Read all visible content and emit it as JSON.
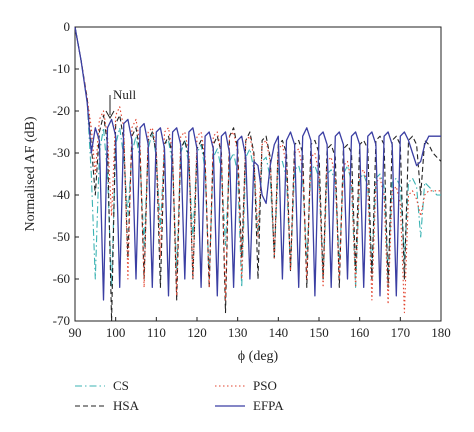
{
  "chart_data": {
    "type": "line",
    "xlabel": "ϕ (deg)",
    "ylabel": "Normalised AF (dB)",
    "xlim": [
      90,
      180
    ],
    "ylim": [
      -70,
      0
    ],
    "xticks": [
      90,
      100,
      110,
      120,
      130,
      140,
      150,
      160,
      170,
      180
    ],
    "yticks": [
      0,
      -10,
      -20,
      -30,
      -40,
      -50,
      -60,
      -70
    ],
    "grid": false,
    "legend_position": "bottom",
    "annotations": [
      {
        "text": "Null",
        "x": 99,
        "y": -24,
        "arrow": "down"
      }
    ],
    "series": [
      {
        "name": "CS",
        "color": "#3bb3b3",
        "style": "dash-dot",
        "x": [
          90,
          91.5,
          93,
          94,
          95,
          96,
          97,
          98,
          99,
          100,
          101,
          102,
          103,
          104,
          105,
          106,
          107,
          108,
          109,
          110,
          111,
          112,
          113,
          114,
          115,
          116,
          117,
          118,
          119,
          120,
          121,
          122,
          123,
          124,
          125,
          126,
          127,
          128,
          129,
          130,
          131,
          132,
          133,
          134,
          135,
          136,
          137,
          138,
          139,
          140,
          141,
          142,
          143,
          144,
          145,
          146,
          147,
          148,
          149,
          150,
          151,
          152,
          153,
          154,
          155,
          156,
          157,
          158,
          159,
          160,
          161,
          162,
          163,
          164,
          165,
          166,
          167,
          168,
          169,
          170,
          171,
          172,
          173,
          174,
          175,
          176,
          177,
          178,
          179,
          180
        ],
        "values": [
          0,
          -8,
          -18,
          -35,
          -60,
          -30,
          -24,
          -35,
          -62,
          -28,
          -24,
          -31,
          -45,
          -30,
          -26,
          -32,
          -52,
          -29,
          -25,
          -31,
          -48,
          -28,
          -27,
          -33,
          -58,
          -30,
          -27,
          -33,
          -50,
          -30,
          -28,
          -34,
          -60,
          -31,
          -29,
          -34,
          -52,
          -32,
          -30,
          -35,
          -62,
          -31,
          -29,
          -34,
          -50,
          -32,
          -31,
          -36,
          -55,
          -33,
          -32,
          -36,
          -58,
          -34,
          -33,
          -37,
          -55,
          -34,
          -33,
          -36,
          -60,
          -35,
          -34,
          -37,
          -56,
          -35,
          -33,
          -37,
          -62,
          -36,
          -35,
          -38,
          -58,
          -36,
          -35,
          -38,
          -60,
          -37,
          -36,
          -38,
          -55,
          -37,
          -36,
          -38,
          -50,
          -37,
          -38,
          -39,
          -40,
          -40
        ]
      },
      {
        "name": "HSA",
        "color": "#222222",
        "style": "dash",
        "x": [
          90,
          91.5,
          93,
          94,
          95,
          96,
          97,
          98,
          99,
          100,
          101,
          102,
          103,
          104,
          105,
          106,
          107,
          108,
          109,
          110,
          111,
          112,
          113,
          114,
          115,
          116,
          117,
          118,
          119,
          120,
          121,
          122,
          123,
          124,
          125,
          126,
          127,
          128,
          129,
          130,
          131,
          132,
          133,
          134,
          135,
          136,
          137,
          138,
          139,
          140,
          141,
          142,
          143,
          144,
          145,
          146,
          147,
          148,
          149,
          150,
          151,
          152,
          153,
          154,
          155,
          156,
          157,
          158,
          159,
          160,
          161,
          162,
          163,
          164,
          165,
          166,
          167,
          168,
          169,
          170,
          171,
          172,
          173,
          174,
          175,
          176,
          177,
          178,
          179,
          180
        ],
        "values": [
          0,
          -8,
          -17,
          -28,
          -40,
          -25,
          -21,
          -28,
          -70,
          -23,
          -21,
          -27,
          -55,
          -26,
          -24,
          -30,
          -60,
          -27,
          -25,
          -30,
          -62,
          -28,
          -26,
          -31,
          -65,
          -29,
          -27,
          -31,
          -60,
          -29,
          -27,
          -32,
          -62,
          -28,
          -26,
          -30,
          -68,
          -26,
          -24,
          -29,
          -55,
          -27,
          -25,
          -30,
          -60,
          -27,
          -26,
          -31,
          -55,
          -28,
          -27,
          -30,
          -58,
          -28,
          -27,
          -30,
          -62,
          -28,
          -27,
          -30,
          -60,
          -29,
          -28,
          -31,
          -62,
          -29,
          -28,
          -30,
          -58,
          -28,
          -27,
          -29,
          -60,
          -27,
          -26,
          -28,
          -62,
          -27,
          -26,
          -28,
          -60,
          -27,
          -26,
          -28,
          -40,
          -27,
          -28,
          -30,
          -31,
          -32
        ]
      },
      {
        "name": "PSO",
        "color": "#e2442f",
        "style": "dot",
        "x": [
          90,
          91.5,
          93,
          94,
          95,
          96,
          97,
          98,
          99,
          100,
          101,
          102,
          103,
          104,
          105,
          106,
          107,
          108,
          109,
          110,
          111,
          112,
          113,
          114,
          115,
          116,
          117,
          118,
          119,
          120,
          121,
          122,
          123,
          124,
          125,
          126,
          127,
          128,
          129,
          130,
          131,
          132,
          133,
          134,
          135,
          136,
          137,
          138,
          139,
          140,
          141,
          142,
          143,
          144,
          145,
          146,
          147,
          148,
          149,
          150,
          151,
          152,
          153,
          154,
          155,
          156,
          157,
          158,
          159,
          160,
          161,
          162,
          163,
          164,
          165,
          166,
          167,
          168,
          169,
          170,
          171,
          172,
          173,
          174,
          175,
          176,
          177,
          178,
          179,
          180
        ],
        "values": [
          0,
          -8,
          -17,
          -24,
          -35,
          -22,
          -20,
          -26,
          -45,
          -21,
          -19,
          -24,
          -60,
          -24,
          -22,
          -28,
          -62,
          -25,
          -24,
          -29,
          -55,
          -25,
          -24,
          -30,
          -64,
          -26,
          -25,
          -30,
          -60,
          -26,
          -25,
          -31,
          -62,
          -26,
          -25,
          -30,
          -65,
          -26,
          -25,
          -30,
          -60,
          -27,
          -26,
          -31,
          -50,
          -28,
          -27,
          -32,
          -55,
          -29,
          -28,
          -33,
          -58,
          -30,
          -29,
          -34,
          -60,
          -31,
          -30,
          -35,
          -62,
          -32,
          -31,
          -36,
          -60,
          -33,
          -32,
          -37,
          -62,
          -35,
          -34,
          -38,
          -65,
          -37,
          -36,
          -40,
          -66,
          -39,
          -38,
          -42,
          -68,
          -40,
          -39,
          -41,
          -45,
          -40,
          -39,
          -39,
          -39,
          -39
        ]
      },
      {
        "name": "EFPA",
        "color": "#3b3fa3",
        "style": "solid",
        "x": [
          90,
          91.5,
          93,
          94,
          95,
          96,
          97,
          98,
          99,
          100,
          101,
          102,
          103,
          104,
          105,
          106,
          107,
          108,
          109,
          110,
          111,
          112,
          113,
          114,
          115,
          116,
          117,
          118,
          119,
          120,
          121,
          122,
          123,
          124,
          125,
          126,
          127,
          128,
          129,
          130,
          131,
          132,
          133,
          134,
          135,
          136,
          137,
          138,
          139,
          140,
          141,
          142,
          143,
          144,
          145,
          146,
          147,
          148,
          149,
          150,
          151,
          152,
          153,
          154,
          155,
          156,
          157,
          158,
          159,
          160,
          161,
          162,
          163,
          164,
          165,
          166,
          167,
          168,
          169,
          170,
          171,
          172,
          173,
          174,
          175,
          176,
          177,
          178,
          179,
          180
        ],
        "values": [
          0,
          -8,
          -18,
          -30,
          -24,
          -27,
          -65,
          -24,
          -22,
          -26,
          -62,
          -23,
          -22,
          -27,
          -60,
          -24,
          -23,
          -28,
          -62,
          -25,
          -24,
          -29,
          -64,
          -25,
          -24,
          -28,
          -60,
          -25,
          -24,
          -29,
          -62,
          -26,
          -25,
          -29,
          -64,
          -26,
          -25,
          -30,
          -62,
          -27,
          -26,
          -31,
          -60,
          -32,
          -33,
          -40,
          -42,
          -33,
          -28,
          -26,
          -60,
          -27,
          -25,
          -28,
          -62,
          -26,
          -24,
          -27,
          -64,
          -26,
          -25,
          -28,
          -62,
          -26,
          -25,
          -28,
          -60,
          -26,
          -25,
          -28,
          -62,
          -26,
          -25,
          -28,
          -64,
          -26,
          -25,
          -28,
          -64,
          -26,
          -25,
          -27,
          -30,
          -33,
          -32,
          -28,
          -26,
          -26,
          -26,
          -26
        ]
      }
    ]
  }
}
